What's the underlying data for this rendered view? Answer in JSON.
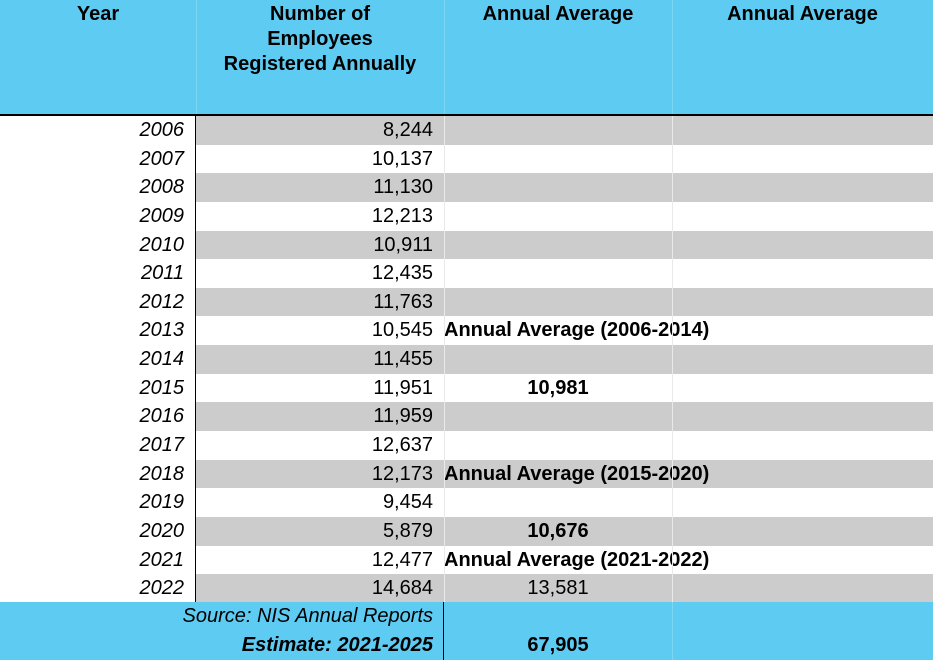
{
  "header": {
    "col_year": "Year",
    "col_employees_line1": "Number of",
    "col_employees_line2": "Employees",
    "col_employees_line3": "Registered Annually",
    "col_avg1": "Annual Average",
    "col_avg2": "Annual Average"
  },
  "rows": [
    {
      "year": "2006",
      "count": "8,244",
      "avg": "",
      "avg_bold": false
    },
    {
      "year": "2007",
      "count": "10,137",
      "avg": "",
      "avg_bold": false
    },
    {
      "year": "2008",
      "count": "11,130",
      "avg": "",
      "avg_bold": false
    },
    {
      "year": "2009",
      "count": "12,213",
      "avg": "",
      "avg_bold": false
    },
    {
      "year": "2010",
      "count": "10,911",
      "avg": "",
      "avg_bold": false
    },
    {
      "year": "2011",
      "count": "12,435",
      "avg": "",
      "avg_bold": false
    },
    {
      "year": "2012",
      "count": "11,763",
      "avg": "",
      "avg_bold": false
    },
    {
      "year": "2013",
      "count": "10,545",
      "avg": "Annual Average (2006-2014)",
      "avg_bold": true
    },
    {
      "year": "2014",
      "count": "11,455",
      "avg": "",
      "avg_bold": false
    },
    {
      "year": "2015",
      "count": "11,951",
      "avg": "10,981",
      "avg_bold": true
    },
    {
      "year": "2016",
      "count": "11,959",
      "avg": "",
      "avg_bold": false
    },
    {
      "year": "2017",
      "count": "12,637",
      "avg": "",
      "avg_bold": false
    },
    {
      "year": "2018",
      "count": "12,173",
      "avg": "Annual Average (2015-2020)",
      "avg_bold": true
    },
    {
      "year": "2019",
      "count": "9,454",
      "avg": "",
      "avg_bold": false
    },
    {
      "year": "2020",
      "count": "5,879",
      "avg": "10,676",
      "avg_bold": true
    },
    {
      "year": "2021",
      "count": "12,477",
      "avg": "Annual Average (2021-2022)",
      "avg_bold": true
    },
    {
      "year": "2022",
      "count": "14,684",
      "avg": "13,581",
      "avg_bold": false
    }
  ],
  "footer": {
    "source": "Source: NIS Annual Reports",
    "estimate_label": "Estimate: 2021-2025",
    "estimate_value": "67,905"
  },
  "colors": {
    "header_bg": "#5ecbf2",
    "shade_row": "#cccccc"
  }
}
